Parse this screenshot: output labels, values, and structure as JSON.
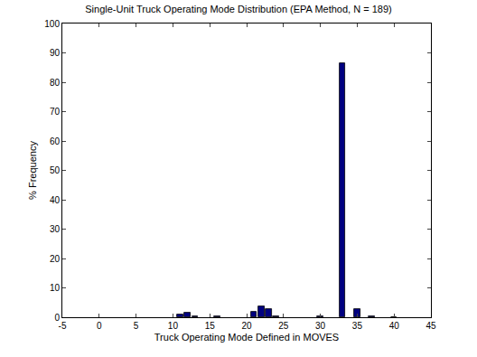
{
  "chart_data": {
    "type": "bar",
    "title": "Single-Unit Truck Operating Mode Distribution (EPA Method, N = 189)",
    "x_label": "Truck Operating Mode Defined in MOVES",
    "y_label": "% Frequency",
    "x": [
      11,
      12,
      13,
      16,
      21,
      22,
      23,
      24,
      30,
      33,
      35,
      37,
      40
    ],
    "values": [
      0.8,
      1.5,
      0.2,
      0.3,
      1.7,
      3.6,
      2.7,
      0.3,
      0.2,
      86.5,
      2.7,
      0.2,
      0.1
    ],
    "color": "#000080",
    "xlim": [
      -5,
      45
    ],
    "xticks": [
      -5,
      0,
      5,
      10,
      15,
      20,
      25,
      30,
      35,
      40,
      45
    ],
    "ylim": [
      0,
      100
    ],
    "yticks": [
      0,
      10,
      20,
      30,
      40,
      50,
      60,
      70,
      80,
      90,
      100
    ],
    "grid": false
  }
}
